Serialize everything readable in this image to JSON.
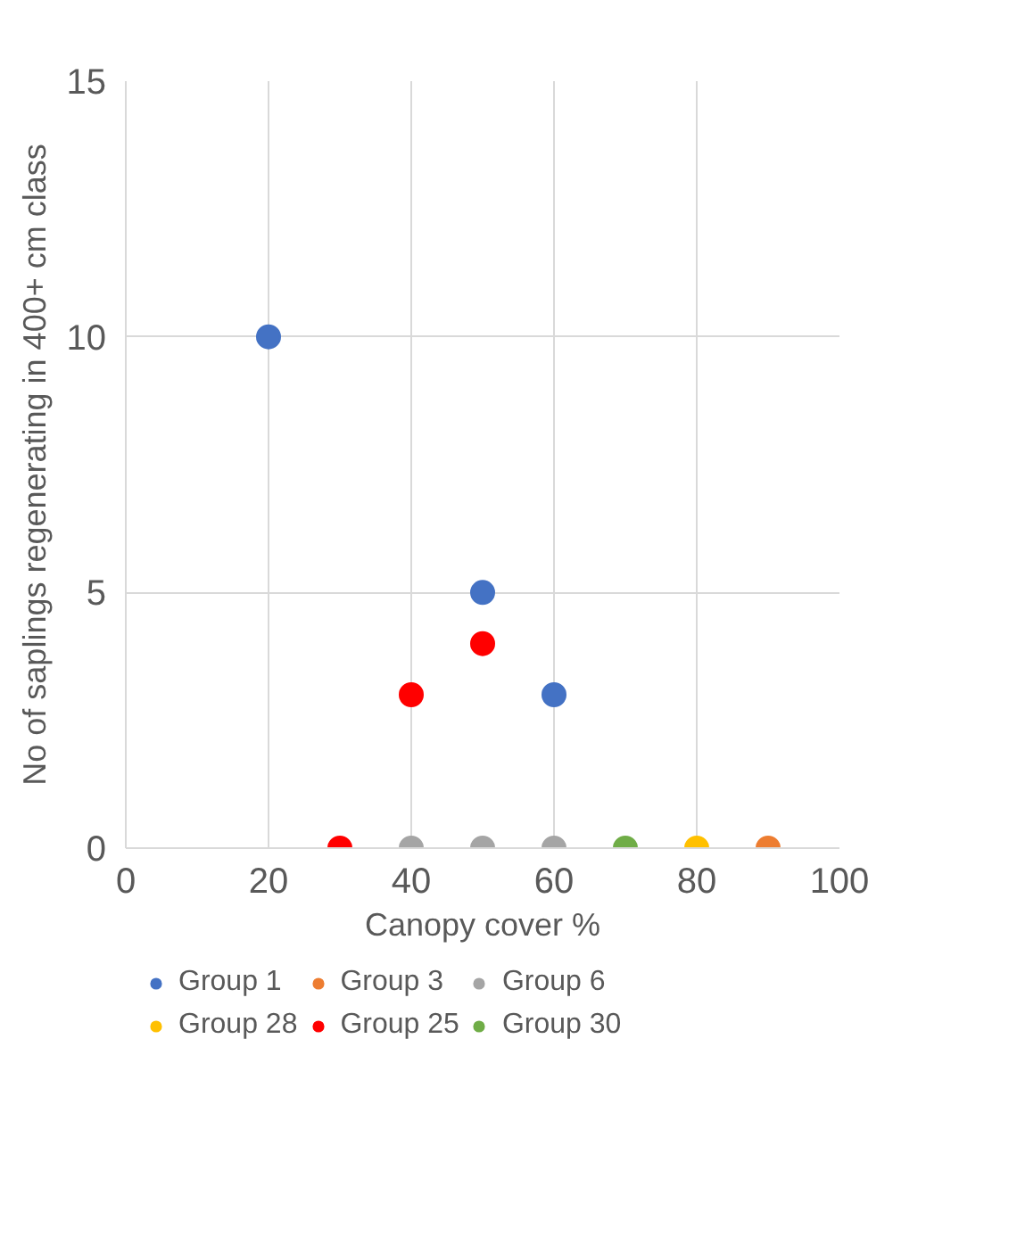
{
  "chart_data": {
    "type": "scatter",
    "xlabel": "Canopy cover %",
    "ylabel": "No of saplings regenerating in 400+ cm class",
    "xlim": [
      0,
      100
    ],
    "xticks": [
      0,
      20,
      40,
      60,
      80,
      100
    ],
    "ylim": [
      0,
      15
    ],
    "yticks": [
      0,
      5,
      10,
      15
    ],
    "grid": true,
    "legend": "bottom",
    "marker": "circle",
    "series": [
      {
        "name": "Group 1",
        "color": "#4472c4",
        "x": [
          20,
          50,
          60
        ],
        "values": [
          10,
          5,
          3
        ]
      },
      {
        "name": "Group 3",
        "color": "#ed7d31",
        "x": [
          90
        ],
        "values": [
          0
        ]
      },
      {
        "name": "Group 6",
        "color": "#a5a5a5",
        "x": [
          40,
          50,
          60
        ],
        "values": [
          0,
          0,
          0
        ]
      },
      {
        "name": "Group 28",
        "color": "#ffc000",
        "x": [
          80
        ],
        "values": [
          0
        ]
      },
      {
        "name": "Group 25",
        "color": "#ff0000",
        "x": [
          30,
          40,
          50
        ],
        "values": [
          0,
          3,
          4
        ]
      },
      {
        "name": "Group 30",
        "color": "#70ad47",
        "x": [
          70
        ],
        "values": [
          0
        ]
      }
    ]
  }
}
